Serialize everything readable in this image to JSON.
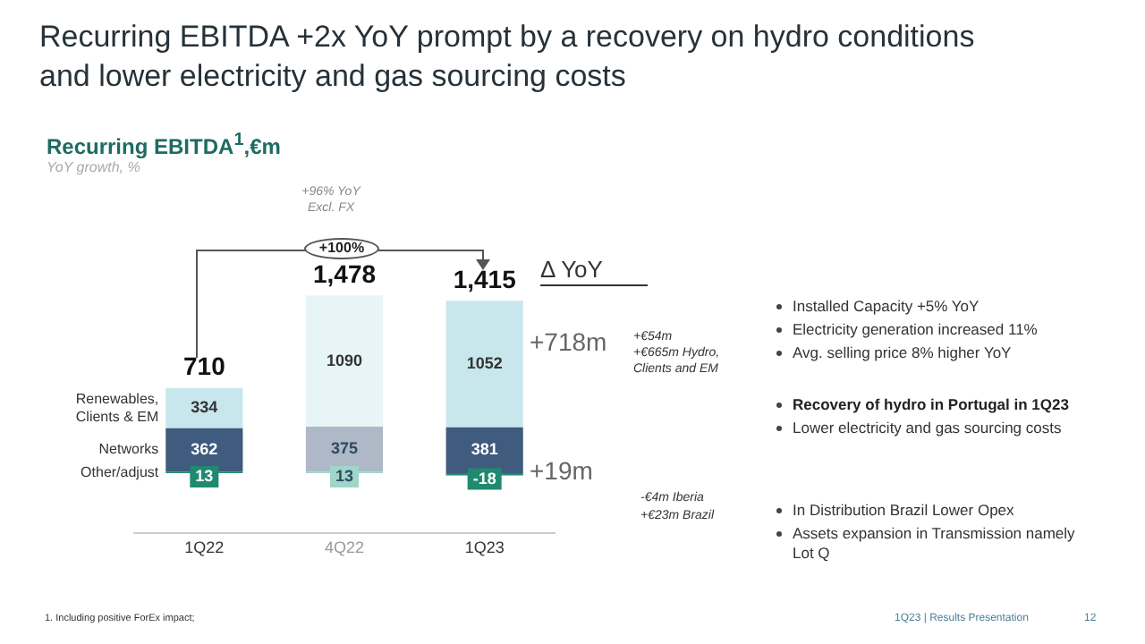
{
  "chart_data": {
    "type": "bar",
    "title": "Recurring EBITDA +2x YoY prompt by a recovery on hydro conditions and lower electricity and gas sourcing costs",
    "subtitle": "Recurring EBITDA$^{1}$,€m",
    "categories": [
      "1Q22",
      "4Q22",
      "1Q23"
    ],
    "stacked": true,
    "series": [
      {
        "name": "Other/adjust",
        "color": "#1f8a70",
        "colors": [
          "#1f8a70",
          "#9fd6c8",
          "#1f8a70"
        ],
        "values": [
          13,
          13,
          -18
        ]
      },
      {
        "name": "Networks",
        "color": "#3f5b7d",
        "colors": [
          "#3f5b7d",
          "#aeb8c6",
          "#3f5b7d"
        ],
        "values": [
          362,
          375,
          381
        ]
      },
      {
        "name": "Renewables, Clients & EM",
        "color": "#c8e7ec",
        "colors": [
          "#c8e7ec",
          "#e8f5f7",
          "#c8e7ec"
        ],
        "values": [
          334,
          1090,
          1052
        ]
      }
    ],
    "data_labels": true,
    "totals": [
      "710",
      "1,478",
      "1,415"
    ],
    "legend": "left",
    "grid": false,
    "annotations": [
      "+96% YoY Excl. FX",
      "+100%",
      "Δ YoY",
      "+718m",
      "+€54m",
      "+€665m Hydro, Clients and EM",
      "Installed Capacity +5% YoY",
      "Electricity generation increased 11%",
      "Avg. selling price 8% higher YoY",
      "Recovery of hydro in Portugal in 1Q23",
      "Lower electricity and gas sourcing costs",
      "+19m",
      "-€4m Iberia",
      "+€23m Brazil",
      "In Distribution Brazil Lower Opex",
      "Assets expansion in Transmission namely Lot Q",
      "1. Including positive ForEx impact;",
      "1Q23 | Results Presentation",
      "12",
      "YoY growth, %"
    ]
  }
}
